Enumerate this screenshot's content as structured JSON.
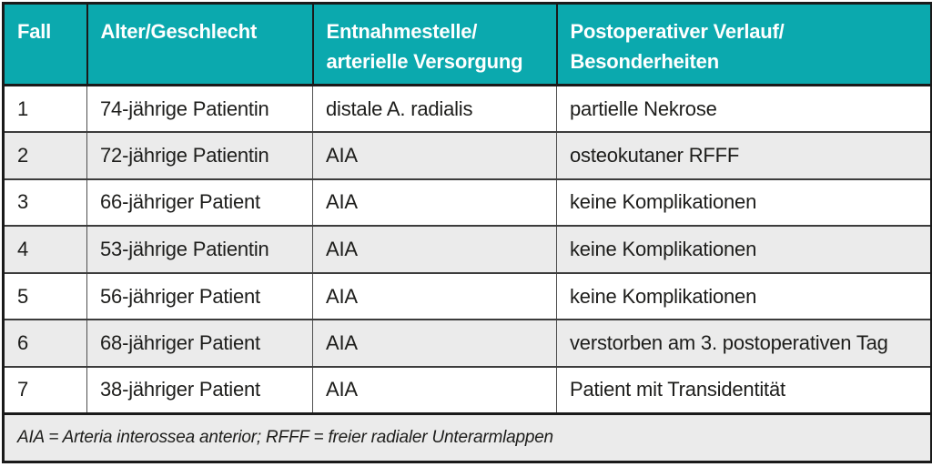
{
  "colors": {
    "header_bg": "#0BA9AE",
    "header_text": "#FFFFFF",
    "row_alt_bg": "#EBEBEB",
    "body_text": "#1D1D1B",
    "border": "#1A1A1A"
  },
  "table": {
    "columns": [
      {
        "lines": [
          "Fall"
        ]
      },
      {
        "lines": [
          "Alter/Geschlecht"
        ]
      },
      {
        "lines": [
          "Entnahmestelle/",
          "arterielle Versorgung"
        ]
      },
      {
        "lines": [
          "Postoperativer Verlauf/",
          "Besonderheiten"
        ]
      }
    ],
    "rows": [
      [
        "1",
        "74-jährige Patientin",
        "distale A. radialis",
        "partielle Nekrose"
      ],
      [
        "2",
        "72-jährige Patientin",
        "AIA",
        "osteokutaner RFFF"
      ],
      [
        "3",
        "66-jähriger Patient",
        "AIA",
        "keine Komplikationen"
      ],
      [
        "4",
        "53-jährige Patientin",
        "AIA",
        "keine Komplikationen"
      ],
      [
        "5",
        "56-jähriger Patient",
        "AIA",
        "keine Komplikationen"
      ],
      [
        "6",
        "68-jähriger Patient",
        "AIA",
        "verstorben am 3. postoperativen Tag"
      ],
      [
        "7",
        "38-jähriger Patient",
        "AIA",
        "Patient mit Transidentität"
      ]
    ],
    "footnote": "AIA = Arteria interossea anterior; RFFF = freier radialer Unterarmlappen"
  }
}
